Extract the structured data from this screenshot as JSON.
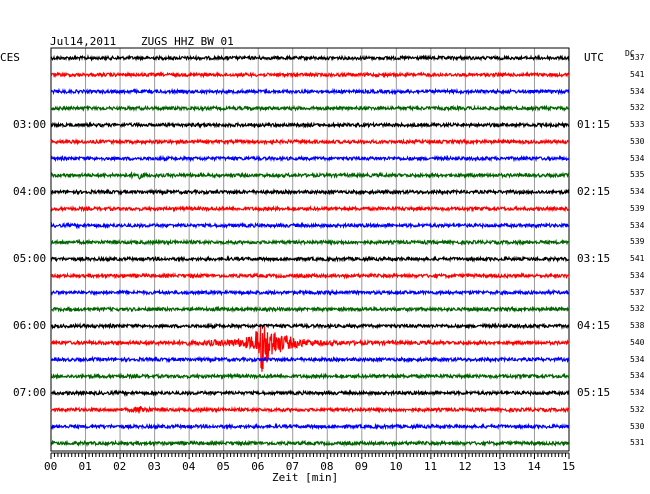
{
  "header": {
    "date": "Jul14,2011",
    "station": "ZUGS HHZ BW 01",
    "left_tz": "CES",
    "right_tz": "UTC",
    "dc_label": "DC"
  },
  "chart_data": {
    "type": "line",
    "title": "Jul14,2011   ZUGS HHZ BW 01",
    "xlabel": "Zeit [min]",
    "xlim": [
      0,
      15
    ],
    "x_ticks": [
      "00",
      "01",
      "02",
      "03",
      "04",
      "05",
      "06",
      "07",
      "08",
      "09",
      "10",
      "11",
      "12",
      "13",
      "14",
      "15"
    ],
    "trace_colors": [
      "#000000",
      "#ff0000",
      "#0000ff",
      "#006400"
    ],
    "grid": true,
    "left_hour_labels": [
      {
        "trace": 4,
        "text": "03:00"
      },
      {
        "trace": 8,
        "text": "04:00"
      },
      {
        "trace": 12,
        "text": "05:00"
      },
      {
        "trace": 16,
        "text": "06:00"
      },
      {
        "trace": 20,
        "text": "07:00"
      }
    ],
    "right_hour_labels": [
      {
        "trace": 4,
        "text": "01:15"
      },
      {
        "trace": 8,
        "text": "02:15"
      },
      {
        "trace": 12,
        "text": "03:15"
      },
      {
        "trace": 16,
        "text": "04:15"
      },
      {
        "trace": 20,
        "text": "05:15"
      }
    ],
    "dc_offsets": [
      "537",
      "541",
      "534",
      "532",
      "533",
      "530",
      "534",
      "535",
      "534",
      "539",
      "534",
      "539",
      "541",
      "534",
      "537",
      "532",
      "538",
      "540",
      "534",
      "534",
      "534",
      "532",
      "530",
      "531"
    ],
    "events": [
      {
        "trace": 17,
        "x_min": 6.1,
        "amplitude": "large"
      },
      {
        "trace": 21,
        "x_min": 2.6,
        "amplitude": "small"
      },
      {
        "trace": 7,
        "x_min": 2.5,
        "amplitude": "small"
      }
    ]
  }
}
